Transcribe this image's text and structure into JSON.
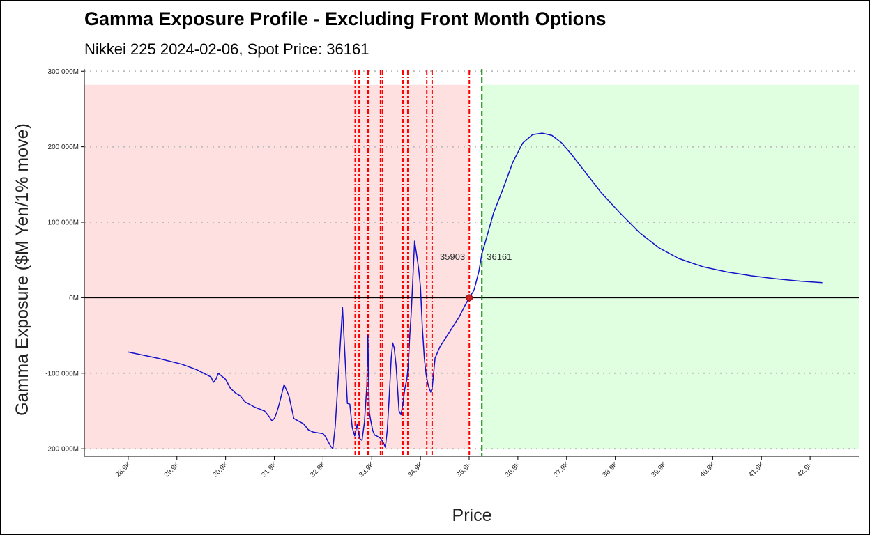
{
  "chart_data": {
    "type": "line",
    "title": "Gamma Exposure Profile - Excluding Front Month Options",
    "subtitle": "Nikkei 225 2024-02-06, Spot Price: 36161",
    "xlabel": "Price",
    "ylabel": "Gamma Exposure ($M Yen/1% move)",
    "xlim": [
      28000,
      43900
    ],
    "ylim": [
      -210000,
      303000
    ],
    "x_ticks": [
      28900,
      29900,
      30900,
      31900,
      32900,
      33900,
      34900,
      35900,
      36900,
      37900,
      38900,
      39900,
      40900,
      41900,
      42900
    ],
    "x_tick_labels": [
      "28.9K",
      "29.9K",
      "30.9K",
      "31.9K",
      "32.9K",
      "33.9K",
      "34.9K",
      "35.9K",
      "36.9K",
      "37.9K",
      "38.9K",
      "39.9K",
      "40.9K",
      "41.9K",
      "42.9K"
    ],
    "y_ticks": [
      -200000,
      -100000,
      0,
      100000,
      200000,
      300000
    ],
    "y_tick_labels": [
      "-200 000M",
      "-100 000M",
      "0M",
      "100 000M",
      "200 000M",
      "300 000M"
    ],
    "grid": "horizontal dotted",
    "colors": {
      "line": "#1111cc",
      "negative_region": "#ffe0e0",
      "positive_region": "#e0ffe0",
      "strike_lines": "#ff0000",
      "spot_line": "#008000",
      "zero_line": "#000000",
      "flip_point": "#cc2222",
      "gridline": "#bbbbbb"
    },
    "regions": {
      "negative": {
        "x": [
          28000,
          35903
        ],
        "y": [
          -200000,
          282000
        ]
      },
      "positive": {
        "x": [
          36161,
          43900
        ],
        "y": [
          -200000,
          282000
        ]
      }
    },
    "gamma_flip": {
      "x": 35903,
      "y": 0,
      "label": "35903"
    },
    "spot": {
      "x": 36161,
      "label": "36161"
    },
    "strike_lines": [
      33560,
      33640,
      33820,
      33840,
      34080,
      34120,
      34540,
      34640,
      35030,
      35140,
      35903
    ],
    "series": [
      {
        "x": [
          28900,
          29500,
          30000,
          30300,
          30600,
          30650,
          30700,
          30750,
          30900,
          31000,
          31050,
          31100,
          31200,
          31300,
          31500,
          31700,
          31800,
          31850,
          31900,
          31950,
          32000,
          32100,
          32200,
          32300,
          32500,
          32600,
          32700,
          32900,
          32950,
          33000,
          33050,
          33100,
          33150,
          33200,
          33300,
          33400,
          33450,
          33500,
          33550,
          33580,
          33600,
          33630,
          33660,
          33700,
          33750,
          33800,
          33820,
          33850,
          33880,
          33920,
          33960,
          34000,
          34050,
          34080,
          34100,
          34140,
          34180,
          34220,
          34260,
          34300,
          34330,
          34360,
          34400,
          34430,
          34460,
          34500,
          34540,
          34580,
          34620,
          34650,
          34680,
          34710,
          34740,
          34780,
          34820,
          34860,
          34900,
          34940,
          34980,
          35020,
          35050,
          35080,
          35110,
          35140,
          35170,
          35200,
          35300,
          35400,
          35500,
          35600,
          35700,
          35800,
          35903,
          36000,
          36100,
          36161,
          36250,
          36400,
          36600,
          36800,
          37000,
          37200,
          37400,
          37600,
          37800,
          38000,
          38300,
          38600,
          39000,
          39400,
          39800,
          40200,
          40700,
          41200,
          41700,
          42200,
          42700,
          43150
        ],
        "y": [
          -72000,
          -80000,
          -88000,
          -95000,
          -105000,
          -112000,
          -108000,
          -100000,
          -108000,
          -120000,
          -123000,
          -126000,
          -130000,
          -138000,
          -145000,
          -150000,
          -158000,
          -163000,
          -160000,
          -152000,
          -141000,
          -115000,
          -130000,
          -160000,
          -167000,
          -175000,
          -178000,
          -180000,
          -184000,
          -190000,
          -196000,
          -200000,
          -170000,
          -120000,
          -13000,
          -140000,
          -141000,
          -172000,
          -183000,
          -174000,
          -168000,
          -180000,
          -187000,
          -189000,
          -165000,
          -116000,
          -50000,
          -152000,
          -163000,
          -176000,
          -182000,
          -183000,
          -185000,
          -186000,
          -188000,
          -192000,
          -198000,
          -175000,
          -130000,
          -80000,
          -60000,
          -66000,
          -90000,
          -120000,
          -150000,
          -155000,
          -140000,
          -120000,
          -108000,
          -90000,
          -50000,
          -20000,
          20000,
          75000,
          58000,
          40000,
          15000,
          -40000,
          -80000,
          -103000,
          -113000,
          -120000,
          -125000,
          -120000,
          -100000,
          -80000,
          -65000,
          -55000,
          -45000,
          -35000,
          -25000,
          -12000,
          0,
          10000,
          35000,
          58000,
          78000,
          112000,
          145000,
          180000,
          205000,
          216000,
          218000,
          215000,
          205000,
          190000,
          165000,
          140000,
          112000,
          86000,
          66000,
          52000,
          41000,
          34000,
          29000,
          25000,
          22000,
          20000
        ]
      }
    ]
  }
}
